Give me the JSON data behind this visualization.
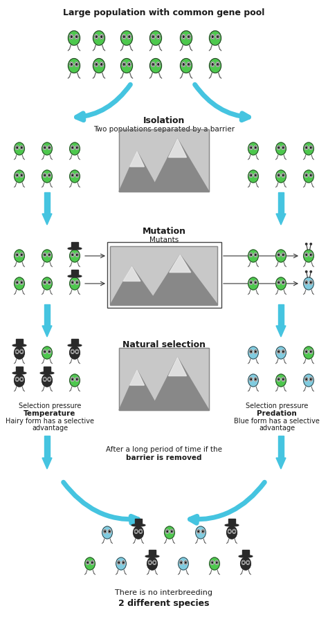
{
  "title_top": "Large population with common gene pool",
  "isolation_title": "Isolation",
  "isolation_subtitle": "Two populations separated by a barrier",
  "mutation_title": "Mutation",
  "mutation_subtitle": "Mutants",
  "natural_selection_title": "Natural selection",
  "left_sel_line1": "Selection pressure",
  "left_sel_line2": "Temperature",
  "left_sel_line3": "Hairy form has a selective",
  "left_sel_line4": "advantage",
  "right_sel_line1": "Selection pressure",
  "right_sel_line2": "Predation",
  "right_sel_line3": "Blue form has a selective",
  "right_sel_line4": "advantage",
  "barrier_line1": "After a long period of time if the",
  "barrier_line2": "barrier is removed",
  "final_line1": "There is no interbreeding",
  "final_line2": "2 different species",
  "bg_color": "#ffffff",
  "arrow_color": "#45c4e0",
  "GREEN": "#4dc84d",
  "BLUE": "#80cce0",
  "BLACK_HAT_BODY": "#3a3a3a",
  "text_dark": "#1a1a1a"
}
